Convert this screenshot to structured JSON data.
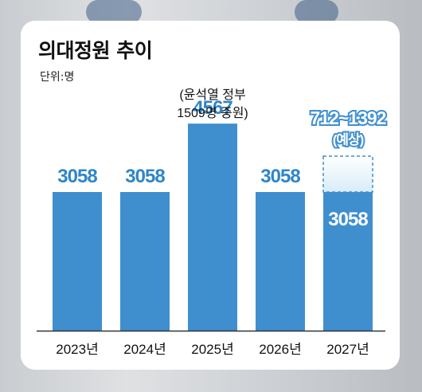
{
  "chart_data": {
    "type": "bar",
    "title": "의대정원 추이",
    "subtitle": "단위:명",
    "categories": [
      "2023년",
      "2024년",
      "2025년",
      "2026년",
      "2027년"
    ],
    "values": [
      3058,
      3058,
      4567,
      3058,
      3058
    ],
    "value_labels": [
      "3058",
      "3058",
      "4567",
      "3058",
      "3058"
    ],
    "annotations": {
      "2025년": [
        "(윤석열 정부",
        "1509명 증원)"
      ],
      "2027년": [
        "712~1392",
        "(예상)"
      ]
    },
    "projected_range": {
      "category": "2027년",
      "low": 712,
      "high": 1392
    },
    "ylim": [
      0,
      5000
    ],
    "grid": false,
    "colors": {
      "bar": "#3f8fcf",
      "value_text": "#2f86c9",
      "projected_fill": "#d8ecf7"
    }
  }
}
